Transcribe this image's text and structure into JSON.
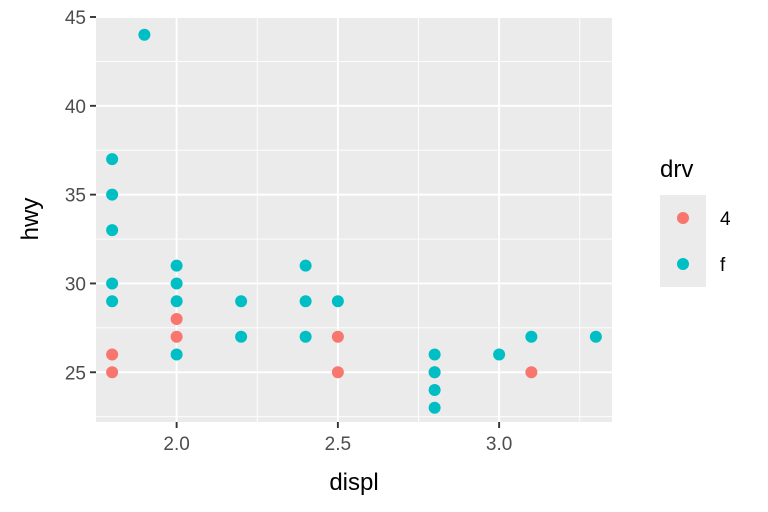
{
  "chart_data": {
    "type": "scatter",
    "title": "",
    "xlabel": "displ",
    "ylabel": "hwy",
    "xlim": [
      1.75,
      3.35
    ],
    "ylim": [
      22.2,
      45.0
    ],
    "x_ticks": [
      2.0,
      2.5,
      3.0
    ],
    "x_tick_labels": [
      "2.0",
      "2.5",
      "3.0"
    ],
    "y_ticks": [
      25,
      30,
      35,
      40,
      45
    ],
    "y_tick_labels": [
      "25",
      "30",
      "35",
      "40",
      "45"
    ],
    "grid": true,
    "legend": {
      "title": "drv",
      "placement": "right",
      "entries": [
        {
          "label": "4",
          "color": "#F8766D"
        },
        {
          "label": "f",
          "color": "#00BFC4"
        }
      ]
    },
    "series": [
      {
        "name": "4",
        "color": "#F8766D",
        "points": [
          [
            1.8,
            26
          ],
          [
            1.8,
            25
          ],
          [
            2.0,
            28
          ],
          [
            2.0,
            27
          ],
          [
            2.5,
            27
          ],
          [
            2.5,
            25
          ],
          [
            2.8,
            25
          ],
          [
            3.1,
            25
          ]
        ]
      },
      {
        "name": "f",
        "color": "#00BFC4",
        "points": [
          [
            1.8,
            37
          ],
          [
            1.8,
            35
          ],
          [
            1.8,
            33
          ],
          [
            1.8,
            30
          ],
          [
            1.8,
            29
          ],
          [
            1.9,
            44
          ],
          [
            2.0,
            31
          ],
          [
            2.0,
            30
          ],
          [
            2.0,
            29
          ],
          [
            2.0,
            26
          ],
          [
            2.2,
            29
          ],
          [
            2.2,
            27
          ],
          [
            2.4,
            31
          ],
          [
            2.4,
            29
          ],
          [
            2.4,
            27
          ],
          [
            2.5,
            29
          ],
          [
            2.8,
            26
          ],
          [
            2.8,
            25
          ],
          [
            2.8,
            24
          ],
          [
            2.8,
            23
          ],
          [
            3.0,
            26
          ],
          [
            3.1,
            27
          ],
          [
            3.3,
            27
          ]
        ]
      }
    ]
  }
}
